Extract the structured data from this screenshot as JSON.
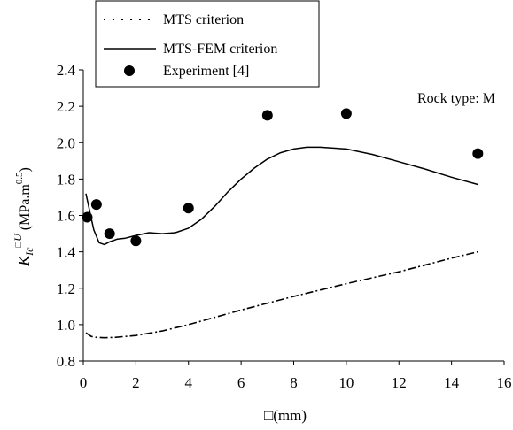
{
  "chart_data": {
    "type": "line",
    "title": "",
    "xlabel": "(mm)",
    "ylabel": {
      "main": "K",
      "sub": "Ic",
      "sup": "U",
      "units_pre": "(MPa.m",
      "units_exp": "0.5",
      "units_post": ")"
    },
    "xlim": [
      0,
      16
    ],
    "ylim": [
      0.8,
      2.4
    ],
    "xticks": [
      "0",
      "2",
      "4",
      "6",
      "8",
      "10",
      "12",
      "14",
      "16"
    ],
    "yticks": [
      "0.8",
      "1.0",
      "1.2",
      "1.4",
      "1.6",
      "1.8",
      "2.0",
      "2.2",
      "2.4"
    ],
    "grid": false,
    "legend": "top-left",
    "annotation": "Rock type: M",
    "series": [
      {
        "name": "MTS criterion",
        "style": "dotted",
        "x": [
          0.1,
          0.3,
          0.5,
          0.8,
          1.2,
          2,
          3,
          4,
          6,
          8,
          10,
          12,
          14,
          15
        ],
        "y": [
          0.955,
          0.935,
          0.93,
          0.928,
          0.93,
          0.94,
          0.965,
          1.0,
          1.08,
          1.155,
          1.225,
          1.29,
          1.365,
          1.4
        ]
      },
      {
        "name": "MTS-FEM criterion",
        "style": "solid",
        "x": [
          0.1,
          0.25,
          0.4,
          0.6,
          0.8,
          1.0,
          1.3,
          1.6,
          2.0,
          2.5,
          3.0,
          3.5,
          4.0,
          4.5,
          5.0,
          5.5,
          6.0,
          6.5,
          7.0,
          7.5,
          8.0,
          8.5,
          9.0,
          10.0,
          11.0,
          12.0,
          13.0,
          14.0,
          15.0
        ],
        "y": [
          1.72,
          1.62,
          1.52,
          1.45,
          1.44,
          1.455,
          1.47,
          1.475,
          1.49,
          1.505,
          1.5,
          1.505,
          1.53,
          1.58,
          1.65,
          1.73,
          1.8,
          1.86,
          1.91,
          1.945,
          1.965,
          1.975,
          1.975,
          1.965,
          1.935,
          1.895,
          1.855,
          1.81,
          1.77
        ]
      },
      {
        "name": "Experiment [4]",
        "style": "marker",
        "x": [
          0.15,
          0.5,
          1.0,
          2.0,
          4.0,
          7.0,
          10.0,
          15.0
        ],
        "y": [
          1.59,
          1.66,
          1.5,
          1.46,
          1.64,
          2.15,
          2.16,
          1.94
        ]
      }
    ]
  },
  "colors": {
    "ink": "#000000",
    "background": "#ffffff"
  },
  "icons": {
    "xlabel_symbol": "missing-glyph-icon",
    "ylabel_symbol": "missing-glyph-icon"
  }
}
